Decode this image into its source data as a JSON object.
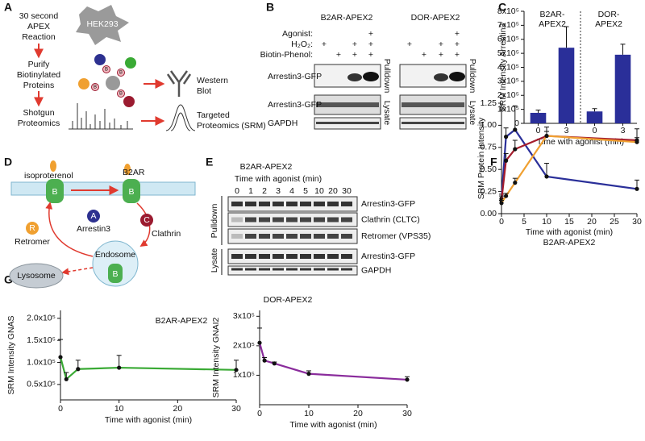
{
  "figure": {
    "panel_labels": [
      "A",
      "B",
      "C",
      "D",
      "E",
      "F",
      "G"
    ],
    "a": {
      "reaction": [
        "30 second",
        "APEX",
        "Reaction"
      ],
      "cell": "HEK293",
      "purify": [
        "Purify",
        "Biotinylated",
        "Proteins"
      ],
      "shotgun": [
        "Shotgun",
        "Proteomics"
      ],
      "western": [
        "Western",
        "Blot"
      ],
      "targeted": [
        "Targeted",
        "Proteomics (SRM)"
      ],
      "biotin": "B"
    },
    "b": {
      "constructs": [
        "B2AR-APEX2",
        "DOR-APEX2"
      ],
      "conditions": [
        "Agonist:",
        "H₂O₂:",
        "Biotin-Phenol:"
      ],
      "plus": "+",
      "blots": [
        "Arrestin3-GFP",
        "Arrestin3-GFP",
        "GAPDH"
      ],
      "fractions": [
        "Pulldown",
        "Lysate"
      ]
    },
    "d": {
      "ligand": "isoproterenol",
      "receptor": "B2AR",
      "receptor_letter": "B",
      "arrestin": [
        "A",
        "Arrestin3"
      ],
      "clathrin": [
        "C",
        "Clathrin"
      ],
      "retromer": [
        "R",
        "Retromer"
      ],
      "endosome": "Endosome",
      "lysosome": "Lysosome"
    },
    "e": {
      "construct": "B2AR-APEX2",
      "time_label": "Time with agonist (min)",
      "lanes": [
        "0",
        "1",
        "2",
        "3",
        "4",
        "5",
        "10",
        "20",
        "30"
      ],
      "blots": [
        "Arrestin3-GFP",
        "Clathrin (CLTC)",
        "Retromer (VPS35)",
        "Arrestin3-GFP",
        "GAPDH"
      ],
      "fractions": [
        "Pulldown",
        "Lysate"
      ]
    }
  },
  "chart_data": [
    {
      "type": "bar",
      "ylabel": "SRM Intensity Arrestin3",
      "xlabel": "Time with agonist (min)",
      "group_labels": [
        [
          "B2AR-",
          "APEX2"
        ],
        [
          "DOR-",
          "APEX2"
        ]
      ],
      "categories": [
        "0",
        "3",
        "0",
        "3"
      ],
      "values": [
        75000,
        540000,
        85000,
        490000
      ],
      "errors": [
        20000,
        150000,
        20000,
        75000
      ],
      "color": "#2a2f99",
      "ylim": [
        0,
        800000
      ],
      "yticks": [
        0,
        {
          "value": 100000,
          "label": "1x10⁵"
        },
        {
          "value": 200000,
          "label": "2x10⁵"
        },
        {
          "value": 300000,
          "label": "3x10⁵"
        },
        {
          "value": 400000,
          "label": "4x10⁵"
        },
        {
          "value": 500000,
          "label": "5x10⁵"
        },
        {
          "value": 600000,
          "label": "6x10⁵"
        },
        {
          "value": 700000,
          "label": "7x10⁵"
        },
        {
          "value": 800000,
          "label": "8x10⁵"
        }
      ]
    },
    {
      "type": "line",
      "ylabel": "SRM Protein Intensity",
      "xlabel": "Time with agonist (min)",
      "subtitle": "B2AR-APEX2",
      "x": [
        0,
        1,
        3,
        10,
        30
      ],
      "series": [
        {
          "color": "#2a2f99",
          "values": [
            0.17,
            0.87,
            0.95,
            0.42,
            0.28
          ],
          "errors": [
            0.05,
            0.1,
            0.27,
            0.15,
            0.1
          ]
        },
        {
          "color": "#a51d2d",
          "values": [
            0.15,
            0.6,
            0.73,
            0.88,
            0.83
          ],
          "errors": [
            0.05,
            0.08,
            0.1,
            0.05,
            0.03
          ]
        },
        {
          "color": "#f0a030",
          "values": [
            0.12,
            0.2,
            0.35,
            0.88,
            0.81
          ],
          "errors": [
            0.03,
            0.03,
            0.05,
            0.1,
            0.15
          ]
        }
      ],
      "xlim": [
        0,
        30
      ],
      "xticks": [
        0,
        5,
        10,
        15,
        20,
        25,
        30
      ],
      "ylim": [
        0,
        1.25
      ],
      "yticks": [
        {
          "value": 0,
          "label": "0.00"
        },
        0.25,
        {
          "value": 0.5,
          "label": "0.50"
        },
        0.75,
        {
          "value": 1,
          "label": "1.00"
        },
        1.25
      ]
    },
    {
      "type": "line",
      "title": "B2AR-APEX2",
      "ylabel": "SRM Intensity GNAS",
      "xlabel": "Time with agonist (min)",
      "x": [
        0,
        1,
        3,
        10,
        30
      ],
      "values": [
        112000,
        62000,
        85000,
        88000,
        83000
      ],
      "errors": [
        40000,
        15000,
        20000,
        28000,
        22000
      ],
      "color": "#3aaa35",
      "xlim": [
        0,
        30
      ],
      "xticks": [
        0,
        10,
        20,
        30
      ],
      "ylim": [
        15000,
        218000
      ],
      "yticks": [
        {
          "value": 50000,
          "label": "0.5x10⁵"
        },
        {
          "value": 100000,
          "label": "1.0x10⁵"
        },
        {
          "value": 150000,
          "label": "1.5x10⁵"
        },
        {
          "value": 200000,
          "label": "2.0x10⁵"
        }
      ]
    },
    {
      "type": "line",
      "title": "DOR-APEX2",
      "ylabel": "SRM Intensity GNAI2",
      "xlabel": "Time with agonist (min)",
      "x": [
        0,
        1,
        3,
        10,
        30
      ],
      "values": [
        210000,
        150000,
        140000,
        105000,
        85000
      ],
      "errors": [
        50000,
        10000,
        5000,
        10000,
        10000
      ],
      "color": "#8a2c9c",
      "xlim": [
        0,
        30
      ],
      "xticks": [
        0,
        10,
        20,
        30
      ],
      "ylim": [
        0,
        320000
      ],
      "yticks": [
        {
          "value": 100000,
          "label": "1x10⁵"
        },
        {
          "value": 200000,
          "label": "2x10⁵"
        },
        {
          "value": 300000,
          "label": "3x10⁵"
        }
      ]
    }
  ]
}
